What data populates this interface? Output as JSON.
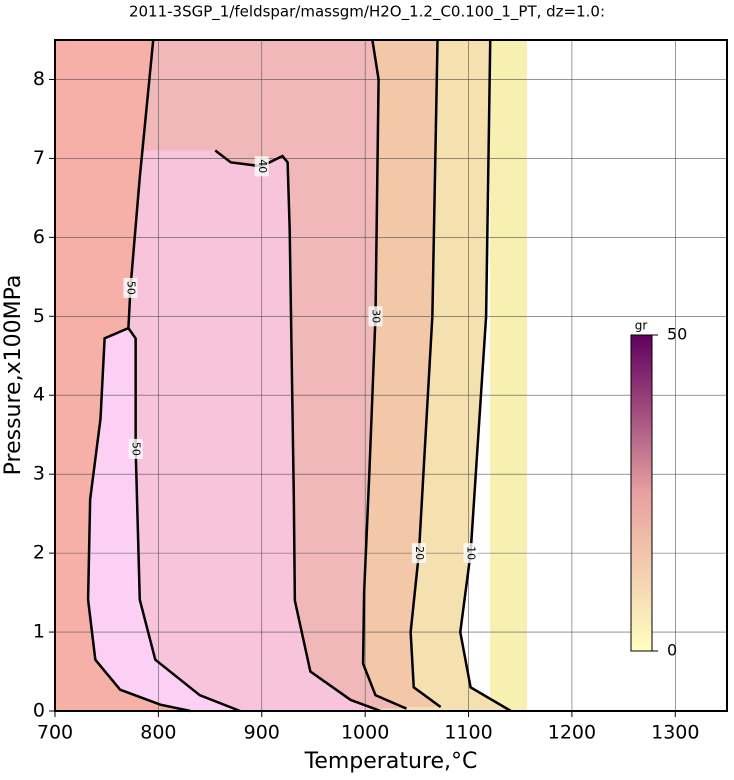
{
  "chart_data": {
    "type": "contour",
    "title": "2011-3SGP_1/feldspar/massgm/H2O_1.2_C0.100_1_PT, dz=1.0:",
    "x_label": "Temperature,°C",
    "y_label": "Pressure,x100MPa",
    "xlim": [
      700,
      1350
    ],
    "ylim": [
      0,
      8.5
    ],
    "xticks": [
      700,
      800,
      900,
      1000,
      1100,
      1200,
      1300
    ],
    "yticks": [
      0,
      1,
      2,
      3,
      4,
      5,
      6,
      7,
      8
    ],
    "grid": true,
    "contours": [
      {
        "level": 10,
        "color": "#f5e0b0",
        "x": [
          1121,
          1117,
          1102,
          1092,
          1102,
          1141
        ],
        "y": [
          8.5,
          5,
          2,
          1,
          0.3,
          0
        ]
      },
      {
        "level": 20,
        "color": "#f2c8a8",
        "x": [
          1070,
          1065,
          1052,
          1044,
          1047,
          1073
        ],
        "y": [
          8.5,
          5,
          2,
          1,
          0.3,
          0.05
        ]
      },
      {
        "level": 30,
        "color": "#f0b8b8",
        "x": [
          1007,
          1013,
          1010,
          1004,
          999,
          998,
          1010,
          1040
        ],
        "y": [
          8.5,
          8,
          5,
          3,
          1.5,
          0.6,
          0.2,
          0.03
        ]
      },
      {
        "level": 40,
        "color": "#f8c4dc",
        "x": [
          855,
          870,
          900,
          920,
          925,
          927,
          931,
          932,
          947,
          986,
          1015
        ],
        "y": [
          7.1,
          6.95,
          6.9,
          7.03,
          6.95,
          6.1,
          2.7,
          1.4,
          0.5,
          0.14,
          0
        ]
      },
      {
        "level": 50,
        "color": "#fcd0f4",
        "x": [
          771,
          778,
          778,
          782,
          797,
          840,
          879
        ],
        "y": [
          4.85,
          4.72,
          3.32,
          1.41,
          0.65,
          0.2,
          0
        ]
      },
      {
        "level": 50,
        "color": "#f6b0a8",
        "x": [
          795,
          782,
          773,
          771,
          748,
          744,
          734,
          732,
          739,
          763,
          802,
          831
        ],
        "y": [
          8.5,
          6.76,
          5.36,
          4.85,
          4.72,
          3.7,
          2.68,
          1.41,
          0.65,
          0.27,
          0.08,
          0
        ]
      }
    ],
    "colorbar": {
      "label": "gr",
      "lim": [
        0,
        50
      ],
      "ticks": [
        0,
        50
      ],
      "colors": [
        "#ffffc0",
        "#e8a0a0",
        "#600060"
      ]
    }
  }
}
